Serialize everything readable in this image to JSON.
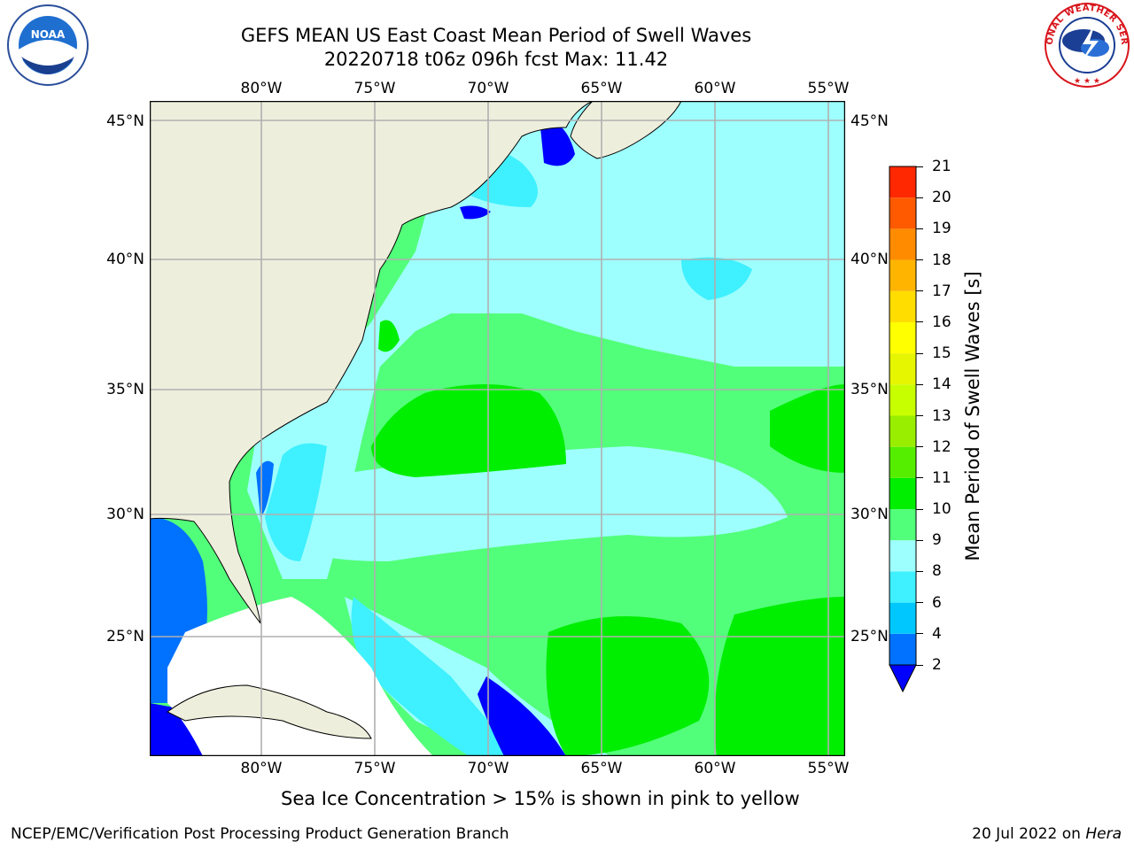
{
  "title": {
    "line1": "GEFS MEAN US East Coast Mean Period of Swell Waves",
    "line2": "20220718 t06z 096h fcst   Max: 11.42"
  },
  "map": {
    "lon_labels": [
      "80°W",
      "75°W",
      "70°W",
      "65°W",
      "60°W",
      "55°W"
    ],
    "lat_labels": [
      "45°N",
      "40°N",
      "35°N",
      "30°N",
      "25°N"
    ],
    "land_color": "#eeeedd",
    "grid_color": "#b0b0b0"
  },
  "colorbar": {
    "title": "Mean Period of Swell Waves [s]",
    "levels": [
      "2",
      "4",
      "6",
      "8",
      "9",
      "10",
      "11",
      "12",
      "13",
      "14",
      "15",
      "16",
      "17",
      "18",
      "19",
      "20",
      "21"
    ],
    "colors": [
      "#0072ff",
      "#00c8ff",
      "#3ff0ff",
      "#9effff",
      "#52ff7a",
      "#00ee00",
      "#55ee00",
      "#99ee00",
      "#c8ff00",
      "#e6f500",
      "#ffff00",
      "#ffdd00",
      "#ffb400",
      "#ff8c00",
      "#ff5a00",
      "#ff2800"
    ],
    "under_color": "#0000ff"
  },
  "notes": {
    "sea_ice": "Sea Ice Concentration > 15% is shown in pink to yellow"
  },
  "footer": {
    "left": "NCEP/EMC/Verification Post Processing Product Generation Branch",
    "date": "20 Jul 2022 on ",
    "machine": "Hera"
  },
  "logos": {
    "left": "NOAA",
    "right": "NATIONAL WEATHER SERVICE"
  }
}
